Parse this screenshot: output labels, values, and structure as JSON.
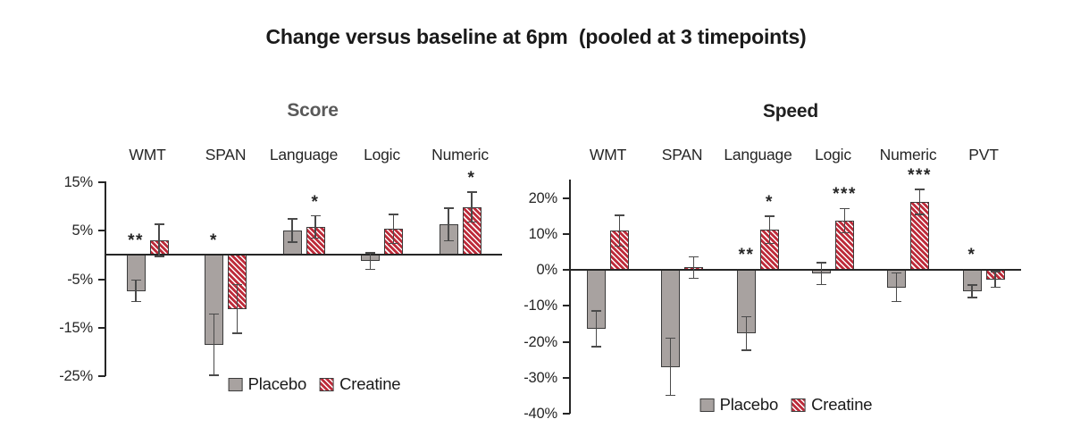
{
  "title": "Change versus baseline at 6pm  (pooled at 3 timepoints)",
  "colors": {
    "placebo_fill": "#a8a2a0",
    "creatine_stripe": "#bd2b3a",
    "bar_border": "#3b3b3b",
    "axis": "#262626",
    "error_bar": "#4a4a4a",
    "text": "#262626",
    "score_title": "#595959",
    "speed_title": "#1f1f1f"
  },
  "chart_data": [
    {
      "type": "bar",
      "title": "Score",
      "title_color_key": "score_title",
      "categories": [
        "WMT",
        "SPAN",
        "Language",
        "Logic",
        "Numeric"
      ],
      "series": [
        {
          "name": "Placebo",
          "values": [
            -7.4,
            -18.5,
            5.0,
            -1.3,
            6.3
          ],
          "errors": [
            2.2,
            6.3,
            2.4,
            1.7,
            3.4
          ]
        },
        {
          "name": "Creatine",
          "values": [
            3.0,
            -11.1,
            5.8,
            5.4,
            9.9
          ],
          "errors": [
            3.3,
            5.0,
            2.3,
            3.0,
            3.1
          ]
        }
      ],
      "significance": [
        {
          "category": "WMT",
          "series": "Placebo",
          "label": "**"
        },
        {
          "category": "SPAN",
          "series": "Placebo",
          "label": "*"
        },
        {
          "category": "Language",
          "series": "Creatine",
          "label": "*"
        },
        {
          "category": "Numeric",
          "series": "Creatine",
          "label": "*"
        }
      ],
      "yticks": [
        15,
        5,
        -5,
        -15,
        -25
      ],
      "ytick_suffix": "%",
      "ylim": [
        15,
        -25
      ],
      "xlabel": "",
      "ylabel": "",
      "grid": false,
      "legend_position": "inside-bottom"
    },
    {
      "type": "bar",
      "title": "Speed",
      "title_color_key": "speed_title",
      "categories": [
        "WMT",
        "SPAN",
        "Language",
        "Logic",
        "Numeric",
        "PVT"
      ],
      "series": [
        {
          "name": "Placebo",
          "values": [
            -16.4,
            -27.0,
            -17.7,
            -1.0,
            -4.8,
            -5.9
          ],
          "errors": [
            5.0,
            8.0,
            4.7,
            3.0,
            4.0,
            1.8
          ]
        },
        {
          "name": "Creatine",
          "values": [
            11.0,
            0.7,
            11.2,
            13.8,
            19.0,
            -2.6
          ],
          "errors": [
            4.3,
            3.0,
            3.8,
            3.4,
            3.5,
            2.2
          ]
        }
      ],
      "significance": [
        {
          "category": "Language",
          "series": "Placebo",
          "label": "**"
        },
        {
          "category": "Language",
          "series": "Creatine",
          "label": "*"
        },
        {
          "category": "Logic",
          "series": "Creatine",
          "label": "***"
        },
        {
          "category": "Numeric",
          "series": "Creatine",
          "label": "***"
        },
        {
          "category": "PVT",
          "series": "Placebo",
          "label": "*"
        }
      ],
      "yticks": [
        20,
        10,
        0,
        -10,
        -20,
        -30,
        -40
      ],
      "ytick_suffix": "%",
      "ylim": [
        25,
        -40
      ],
      "xlabel": "",
      "ylabel": "",
      "grid": false,
      "legend_position": "inside-bottom"
    }
  ]
}
